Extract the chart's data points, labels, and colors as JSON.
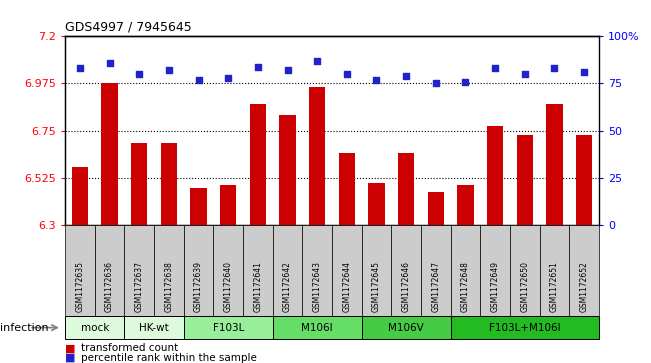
{
  "title": "GDS4997 / 7945645",
  "samples": [
    "GSM1172635",
    "GSM1172636",
    "GSM1172637",
    "GSM1172638",
    "GSM1172639",
    "GSM1172640",
    "GSM1172641",
    "GSM1172642",
    "GSM1172643",
    "GSM1172644",
    "GSM1172645",
    "GSM1172646",
    "GSM1172647",
    "GSM1172648",
    "GSM1172649",
    "GSM1172650",
    "GSM1172651",
    "GSM1172652"
  ],
  "bar_values": [
    6.575,
    6.975,
    6.69,
    6.69,
    6.475,
    6.49,
    6.875,
    6.825,
    6.96,
    6.645,
    6.5,
    6.645,
    6.46,
    6.49,
    6.77,
    6.73,
    6.875,
    6.73
  ],
  "percentile_values": [
    83,
    86,
    80,
    82,
    77,
    78,
    84,
    82,
    87,
    80,
    77,
    79,
    75,
    76,
    83,
    80,
    83,
    81
  ],
  "ylim_left": [
    6.3,
    7.2
  ],
  "ylim_right": [
    0,
    100
  ],
  "yticks_left": [
    6.3,
    6.525,
    6.75,
    6.975,
    7.2
  ],
  "ytick_labels_left": [
    "6.3",
    "6.525",
    "6.75",
    "6.975",
    "7.2"
  ],
  "yticks_right": [
    0,
    25,
    50,
    75,
    100
  ],
  "ytick_labels_right": [
    "0",
    "25",
    "50",
    "75",
    "100%"
  ],
  "dotted_lines": [
    6.525,
    6.75,
    6.975
  ],
  "bar_color": "#CC0000",
  "dot_color": "#2222CC",
  "sample_bg_color": "#cccccc",
  "groups": [
    {
      "label": "mock",
      "indices": [
        0,
        1
      ],
      "color": "#ddfadd"
    },
    {
      "label": "HK-wt",
      "indices": [
        2,
        3
      ],
      "color": "#ddfadd"
    },
    {
      "label": "F103L",
      "indices": [
        4,
        5,
        6
      ],
      "color": "#99ee99"
    },
    {
      "label": "M106I",
      "indices": [
        7,
        8,
        9
      ],
      "color": "#66dd66"
    },
    {
      "label": "M106V",
      "indices": [
        10,
        11,
        12
      ],
      "color": "#44cc44"
    },
    {
      "label": "F103L+M106I",
      "indices": [
        13,
        14,
        15,
        16,
        17
      ],
      "color": "#22bb22"
    }
  ],
  "infection_label": "infection",
  "legend_bar_label": "transformed count",
  "legend_dot_label": "percentile rank within the sample"
}
